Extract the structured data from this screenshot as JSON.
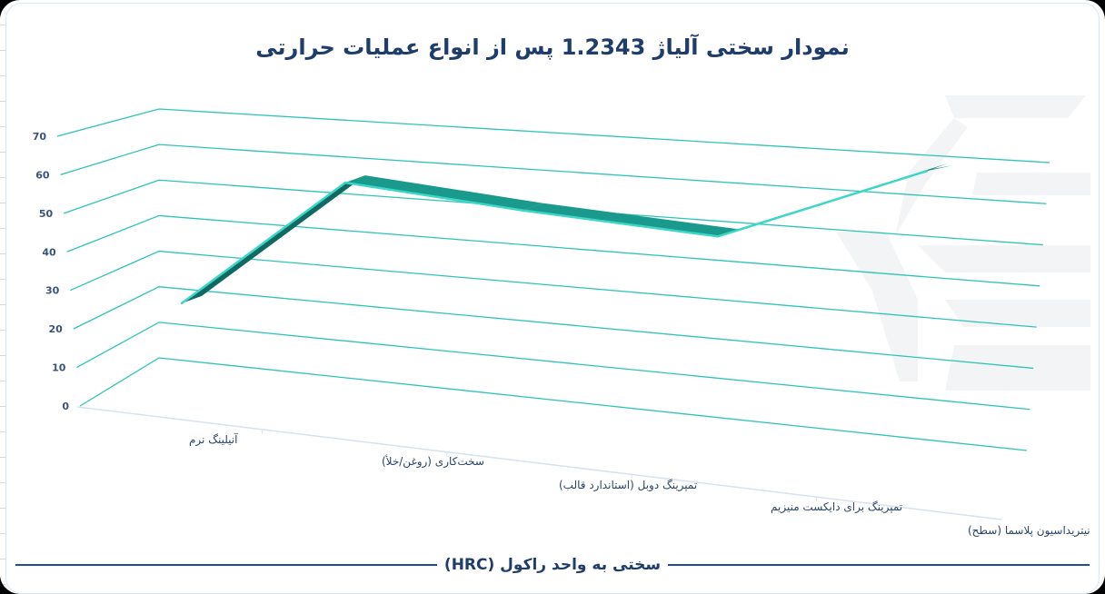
{
  "title": "نمودار سختی آلیاژ  1.2343 پس از انواع عملیات حرارتی",
  "footer": {
    "axis_caption": "سختی به واحد راکول (HRC)"
  },
  "colors": {
    "grid": "#2ec4b6",
    "ribbon_top": "#1a9a8c",
    "ribbon_side": "#0f6b62",
    "ribbon_edge": "#3fd6c8",
    "title": "#1f3d6b",
    "axis_text": "#3a5478",
    "footer_rule": "#1f4f8f"
  },
  "chart_data": {
    "type": "line",
    "style": "3d-ribbon",
    "title": "نمودار سختی آلیاژ  1.2343 پس از انواع عملیات حرارتی",
    "xlabel": "",
    "ylabel": "سختی به واحد راکول (HRC)",
    "categories": [
      "آنیلینگ نرم",
      "سخت‌کاری (روغن/خلأ)",
      "تمپرینگ دوبل (استاندارد قالب)",
      "تمپرینگ برای دایکست منیزیم",
      "نیتریداسیون پلاسما (سطح)"
    ],
    "series": [
      {
        "name": "سختی (HRC)",
        "values": [
          17,
          54,
          50,
          47,
          67
        ]
      }
    ],
    "yticks": [
      0,
      10,
      20,
      30,
      40,
      50,
      60,
      70
    ],
    "ylim": [
      0,
      70
    ],
    "grid": true,
    "legend": null
  }
}
